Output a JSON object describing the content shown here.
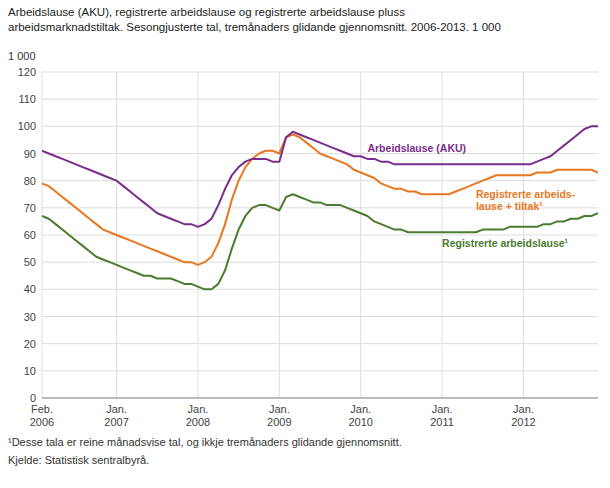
{
  "chart_data": {
    "type": "line",
    "title": "Arbeidslause (AKU), registrerte arbeidslause og registrerte arbeidslause pluss\narbeidsmarknadstiltak. Sesongjusterte tal, tremånaders glidande gjennomsnitt. 2006-2013. 1 000",
    "ylabel": "1 000",
    "footnotes": [
      "¹Desse tala er reine månadsvise tal, og ikkje tremånaders glidande gjennomsnitt.",
      "Kjelde: Statistisk sentralbyrå."
    ],
    "categories": [
      "Feb.\n2006",
      null,
      null,
      null,
      null,
      null,
      null,
      null,
      null,
      null,
      null,
      "Jan.\n2007",
      null,
      null,
      null,
      null,
      null,
      null,
      null,
      null,
      null,
      null,
      null,
      "Jan.\n2008",
      null,
      null,
      null,
      null,
      null,
      null,
      null,
      null,
      null,
      null,
      null,
      "Jan.\n2009",
      null,
      null,
      null,
      null,
      null,
      null,
      null,
      null,
      null,
      null,
      null,
      "Jan.\n2010",
      null,
      null,
      null,
      null,
      null,
      null,
      null,
      null,
      null,
      null,
      null,
      "Jan.\n2011",
      null,
      null,
      null,
      null,
      null,
      null,
      null,
      null,
      null,
      null,
      null,
      "Jan.\n2012",
      null,
      null,
      null,
      null,
      null,
      null,
      null,
      null,
      null,
      null,
      null
    ],
    "series": [
      {
        "name": "Registrerte arbeids-\nlause + tiltak¹",
        "color": "#E87722",
        "values": [
          79,
          78,
          76,
          74,
          72,
          70,
          68,
          66,
          64,
          62,
          61,
          60,
          59,
          58,
          57,
          56,
          55,
          54,
          53,
          52,
          51,
          50,
          50,
          49,
          50,
          52,
          57,
          64,
          73,
          80,
          85,
          88,
          90,
          91,
          91,
          90,
          96,
          97,
          96,
          94,
          92,
          90,
          89,
          88,
          87,
          86,
          84,
          83,
          82,
          81,
          79,
          78,
          77,
          77,
          76,
          76,
          75,
          75,
          75,
          75,
          75,
          76,
          77,
          78,
          79,
          80,
          81,
          82,
          82,
          82,
          82,
          82,
          82,
          83,
          83,
          83,
          84,
          84,
          84,
          84,
          84,
          84,
          83
        ]
      },
      {
        "name": "Registrerte arbeidslause¹",
        "color": "#4A7C2F",
        "values": [
          67,
          66,
          64,
          62,
          60,
          58,
          56,
          54,
          52,
          51,
          50,
          49,
          48,
          47,
          46,
          45,
          45,
          44,
          44,
          44,
          43,
          42,
          42,
          41,
          40,
          40,
          42,
          47,
          55,
          62,
          67,
          70,
          71,
          71,
          70,
          69,
          74,
          75,
          74,
          73,
          72,
          72,
          71,
          71,
          71,
          70,
          69,
          68,
          67,
          65,
          64,
          63,
          62,
          62,
          61,
          61,
          61,
          61,
          61,
          61,
          61,
          61,
          61,
          61,
          61,
          62,
          62,
          62,
          62,
          63,
          63,
          63,
          63,
          63,
          64,
          64,
          65,
          65,
          66,
          66,
          67,
          67,
          68
        ]
      },
      {
        "name": "Arbeidslause (AKU)",
        "color": "#7B2D8B",
        "values": [
          91,
          90,
          89,
          88,
          87,
          86,
          85,
          84,
          83,
          82,
          81,
          80,
          78,
          76,
          74,
          72,
          70,
          68,
          67,
          66,
          65,
          64,
          64,
          63,
          64,
          66,
          71,
          77,
          82,
          85,
          87,
          88,
          88,
          88,
          87,
          87,
          96,
          98,
          97,
          96,
          95,
          94,
          93,
          92,
          91,
          90,
          89,
          89,
          88,
          88,
          87,
          87,
          86,
          86,
          86,
          86,
          86,
          86,
          86,
          86,
          86,
          86,
          86,
          86,
          86,
          86,
          86,
          86,
          86,
          86,
          86,
          86,
          86,
          87,
          88,
          89,
          91,
          93,
          95,
          97,
          99,
          100,
          100
        ]
      }
    ],
    "ylim": [
      0,
      120
    ],
    "yticks": [
      0,
      10,
      20,
      30,
      40,
      50,
      60,
      70,
      80,
      90,
      100,
      110,
      120
    ],
    "grid": true
  }
}
